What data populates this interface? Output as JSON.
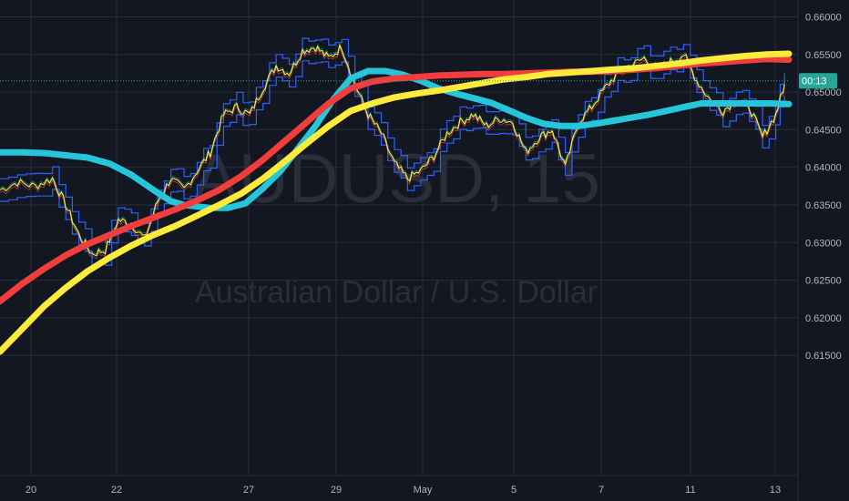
{
  "chart_data": {
    "type": "line",
    "symbol_watermark": "AUDUSD, 15",
    "description_watermark": "Australian Dollar / U.S. Dollar",
    "x_ticks": [
      "20",
      "22",
      "27",
      "29",
      "May",
      "5",
      "7",
      "11",
      "13"
    ],
    "y_ticks": [
      "0.66000",
      "0.65500",
      "0.65000",
      "0.64500",
      "0.64000",
      "0.63500",
      "0.63000",
      "0.62500",
      "0.62000",
      "0.61500"
    ],
    "ylim": [
      0.6115,
      0.6625
    ],
    "current_price_label": "00:13",
    "current_price": 0.6515,
    "grid": true,
    "colors": {
      "background": "#131722",
      "grid": "#2a2e39",
      "ema_red": "#f23d3d",
      "ema_yellow": "#ffeb3b",
      "ema_cyan": "#26c6da",
      "channel": "#2962ff",
      "price_tag": "#26a69a"
    },
    "series": [
      {
        "key": "cyan",
        "color": "#26c6da",
        "x": [
          0,
          2.5,
          5,
          7.5,
          10,
          12.5,
          15,
          17.5,
          19.5,
          21,
          22.5,
          24,
          26,
          28,
          30,
          32,
          34,
          36,
          38,
          40,
          42,
          44,
          46,
          48,
          50,
          52,
          54,
          56,
          58,
          60,
          62,
          64,
          66,
          68,
          70,
          72,
          74,
          76,
          78,
          80,
          82,
          84,
          86,
          88,
          90
        ],
        "y": [
          0.642,
          0.642,
          0.6419,
          0.6416,
          0.6413,
          0.6405,
          0.639,
          0.637,
          0.6355,
          0.635,
          0.6348,
          0.6346,
          0.6346,
          0.6352,
          0.6372,
          0.6395,
          0.6425,
          0.6455,
          0.649,
          0.6518,
          0.6528,
          0.6528,
          0.6523,
          0.6515,
          0.6505,
          0.6498,
          0.6492,
          0.6486,
          0.6476,
          0.6466,
          0.6458,
          0.6455,
          0.6455,
          0.6458,
          0.6462,
          0.6466,
          0.647,
          0.6475,
          0.648,
          0.6485,
          0.6485,
          0.6485,
          0.6485,
          0.6485,
          0.6484
        ]
      },
      {
        "key": "red",
        "color": "#f23d3d",
        "x": [
          0,
          2.5,
          5,
          7.5,
          10,
          12.5,
          15,
          17.5,
          20,
          22.5,
          25,
          27.5,
          30,
          32.5,
          35,
          37.5,
          40,
          42.5,
          45,
          47.5,
          50,
          52.5,
          55,
          57.5,
          60,
          62.5,
          65,
          67.5,
          70,
          72.5,
          75,
          77.5,
          80,
          82.5,
          85,
          87.5,
          90
        ],
        "y": [
          0.6222,
          0.6245,
          0.6265,
          0.6283,
          0.6298,
          0.631,
          0.6322,
          0.6333,
          0.6344,
          0.6356,
          0.637,
          0.6388,
          0.641,
          0.6435,
          0.646,
          0.6485,
          0.6505,
          0.6514,
          0.6518,
          0.652,
          0.6522,
          0.6523,
          0.6524,
          0.6524,
          0.6525,
          0.6526,
          0.6527,
          0.6527,
          0.6528,
          0.653,
          0.6532,
          0.6535,
          0.6538,
          0.654,
          0.6542,
          0.6544,
          0.6543
        ]
      },
      {
        "key": "yellow",
        "color": "#ffeb3b",
        "x": [
          0,
          2.5,
          5,
          7.5,
          10,
          12.5,
          15,
          17.5,
          20,
          22.5,
          25,
          27.5,
          30,
          32.5,
          35,
          37.5,
          40,
          42.5,
          45,
          47.5,
          50,
          52.5,
          55,
          57.5,
          60,
          62.5,
          65,
          67.5,
          70,
          72.5,
          75,
          77.5,
          80,
          82.5,
          85,
          87.5,
          90
        ],
        "y": [
          0.6155,
          0.6185,
          0.6215,
          0.624,
          0.6262,
          0.628,
          0.6296,
          0.631,
          0.6322,
          0.6336,
          0.635,
          0.6365,
          0.6385,
          0.6408,
          0.6432,
          0.6455,
          0.6475,
          0.6485,
          0.6493,
          0.6498,
          0.6502,
          0.6507,
          0.6512,
          0.6517,
          0.652,
          0.6524,
          0.6526,
          0.6528,
          0.653,
          0.6532,
          0.6535,
          0.6538,
          0.6542,
          0.6545,
          0.6548,
          0.655,
          0.6551
        ]
      }
    ],
    "price": {
      "x": [
        0,
        2,
        4,
        6,
        7.5,
        9,
        10.5,
        12,
        13.5,
        15,
        16.5,
        18,
        19.5,
        21,
        22.5,
        24,
        25.5,
        27,
        28.5,
        30,
        31.5,
        33,
        34.5,
        36,
        37.5,
        39,
        40.5,
        42,
        43.5,
        45,
        46.5,
        48,
        49.5,
        51,
        52.5,
        54,
        55.5,
        57,
        58.5,
        60,
        61.5,
        63,
        64.5,
        66,
        67.5,
        69,
        70.5,
        72,
        73.5,
        75,
        76.5,
        78,
        79.5,
        81,
        82.5,
        84,
        85.5,
        87,
        88.5,
        89.5
      ],
      "y": [
        0.637,
        0.638,
        0.6375,
        0.6385,
        0.635,
        0.631,
        0.6285,
        0.629,
        0.633,
        0.6325,
        0.6305,
        0.6355,
        0.6385,
        0.637,
        0.6395,
        0.642,
        0.647,
        0.648,
        0.647,
        0.6505,
        0.6535,
        0.6525,
        0.6555,
        0.656,
        0.6545,
        0.656,
        0.651,
        0.647,
        0.6445,
        0.6405,
        0.6385,
        0.6395,
        0.6415,
        0.6445,
        0.646,
        0.647,
        0.6455,
        0.6465,
        0.646,
        0.642,
        0.644,
        0.645,
        0.64,
        0.646,
        0.648,
        0.6505,
        0.6525,
        0.6535,
        0.6545,
        0.653,
        0.654,
        0.655,
        0.6515,
        0.649,
        0.6475,
        0.649,
        0.648,
        0.644,
        0.647,
        0.651
      ]
    },
    "channel_width": 0.0015
  }
}
